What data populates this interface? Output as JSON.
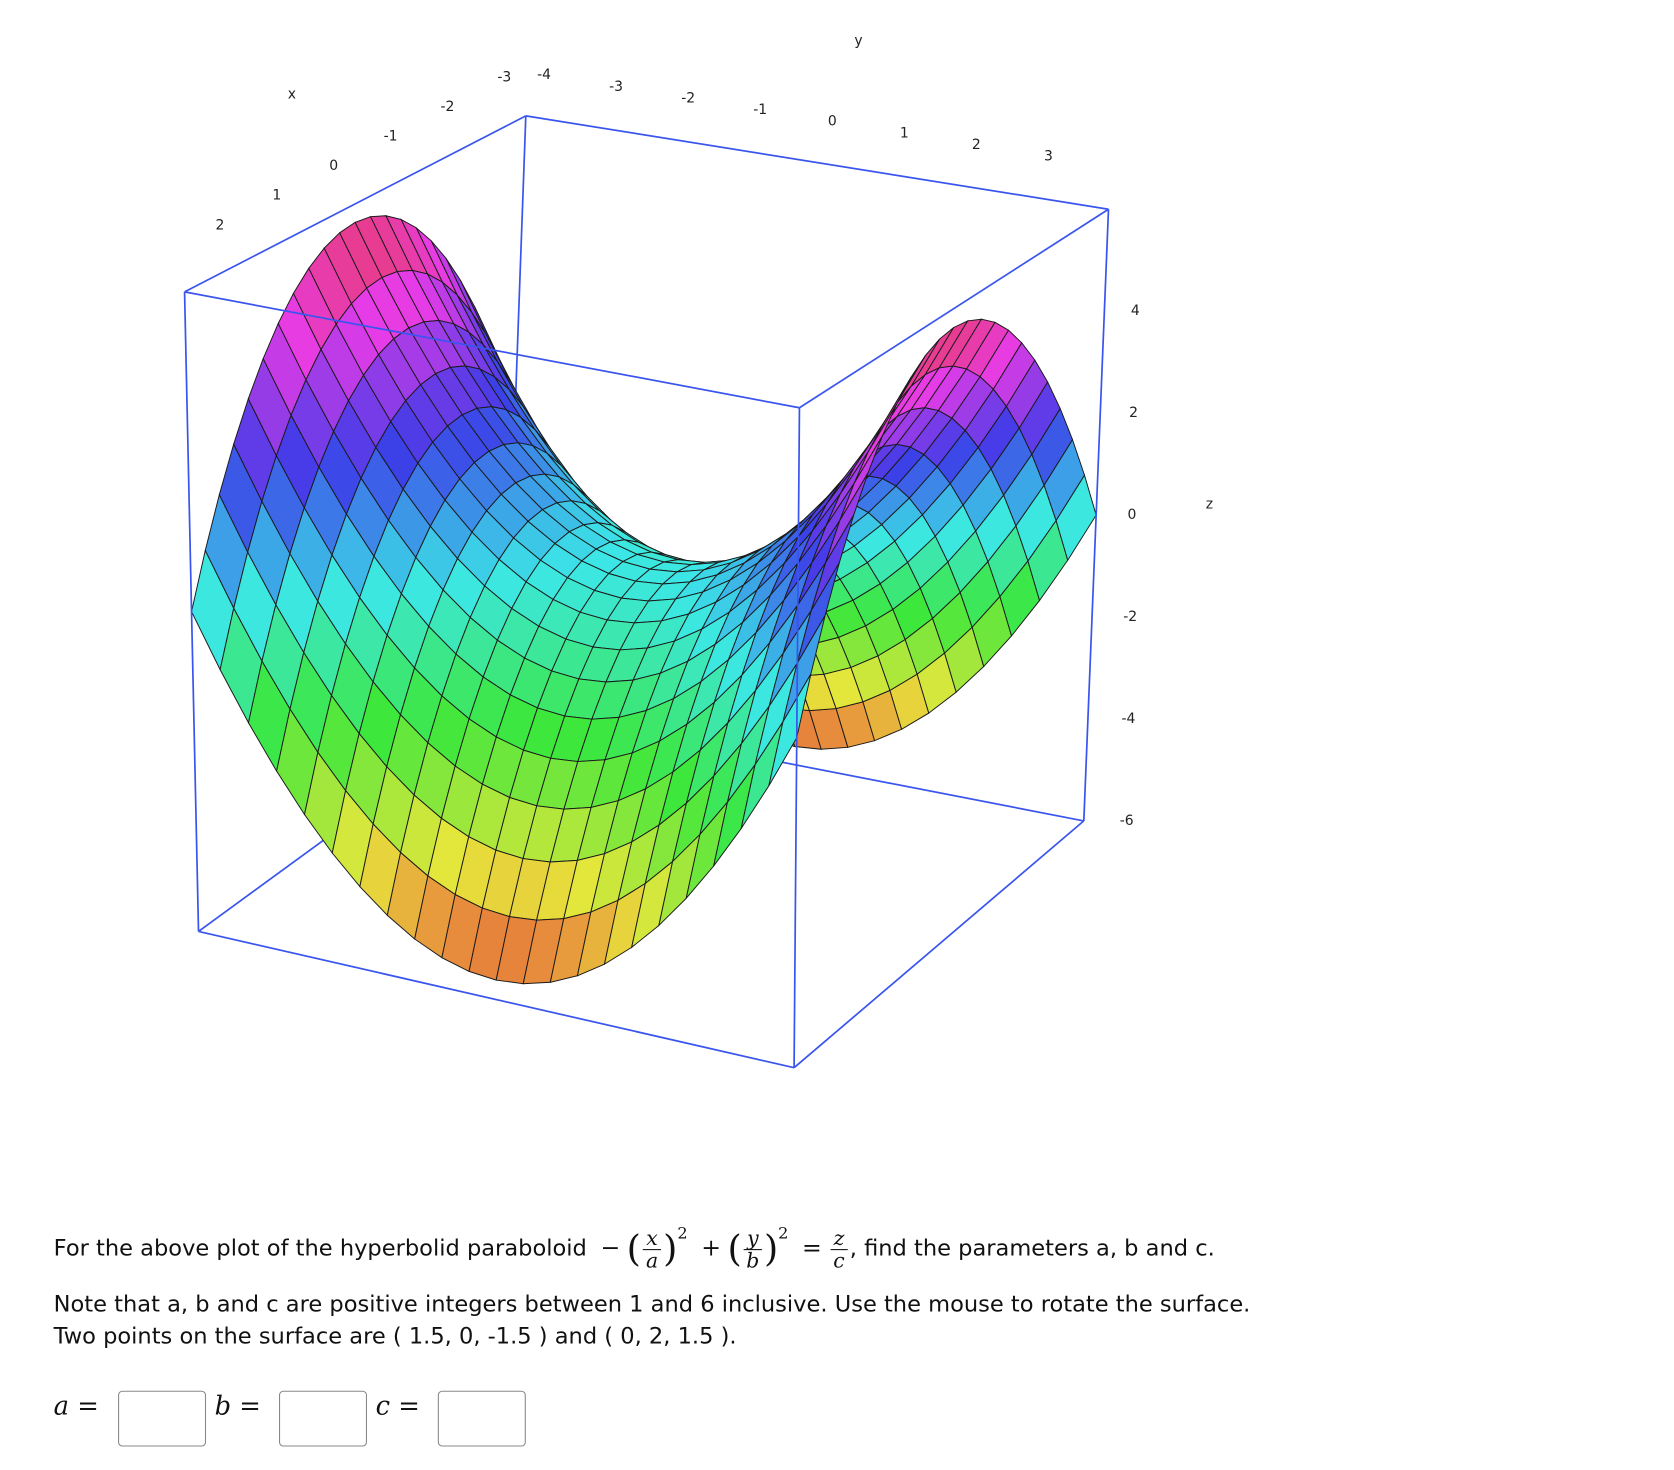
{
  "plot": {
    "axis_labels": {
      "x": "x",
      "y": "y",
      "z": "z"
    },
    "x_ticks": [
      2,
      1,
      0,
      -1,
      -2,
      -3
    ],
    "y_ticks": [
      -4,
      -3,
      -2,
      -1,
      0,
      1,
      2,
      3
    ],
    "z_ticks": [
      4,
      2,
      0,
      -2,
      -4,
      -6
    ]
  },
  "question": {
    "line1_before": "For the above plot of the hyperbolid paraboloid",
    "equation": {
      "minus": "−",
      "x": "x",
      "a": "a",
      "exp1": "2",
      "plus": "+",
      "y": "y",
      "b": "b",
      "exp2": "2",
      "equals": "=",
      "z": "z",
      "c": "c"
    },
    "line1_after": ", find the parameters a, b and c.",
    "line2": "Note that a, b and c are positive integers between 1 and 6 inclusive. Use the mouse to rotate the surface.",
    "line3": "Two points on the surface are ( 1.5, 0, -1.5 ) and ( 0, 2, 1.5 )."
  },
  "answers": {
    "a_label": "a =",
    "b_label": "b =",
    "c_label": "c ="
  }
}
